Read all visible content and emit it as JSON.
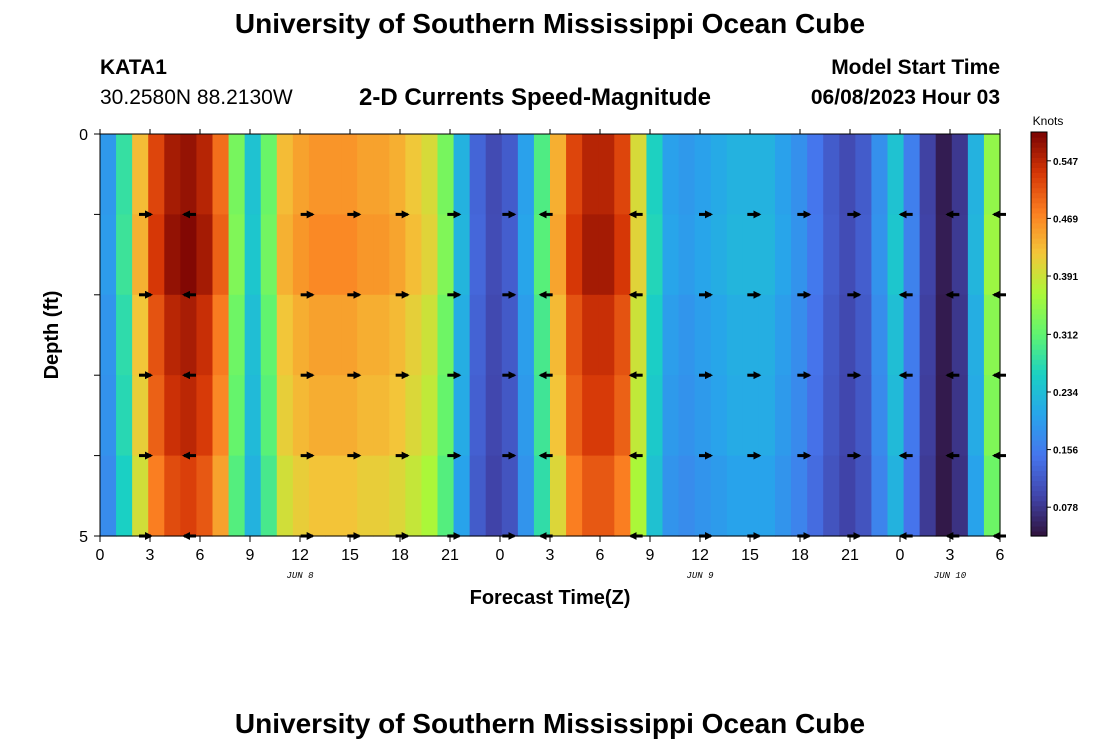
{
  "header": {
    "title": "University of Southern Mississippi Ocean Cube",
    "station_id": "KATA1",
    "coords": "30.2580N  88.2130W",
    "subtitle": "2-D Currents Speed-Magnitude",
    "model_start_label": "Model Start Time",
    "model_start_value": "06/08/2023 Hour 03"
  },
  "footer": {
    "title": "University of Southern Mississippi Ocean Cube"
  },
  "chart_data": {
    "type": "heatmap",
    "title": "2-D Currents Speed-Magnitude",
    "xlabel": "Forecast Time(Z)",
    "ylabel": "Depth (ft)",
    "xlim": [
      0,
      54
    ],
    "ylim": [
      0,
      5
    ],
    "x_ticks": [
      0,
      3,
      6,
      9,
      12,
      15,
      18,
      21,
      24,
      27,
      30,
      33,
      36,
      39,
      42,
      45,
      48,
      51,
      54
    ],
    "x_tick_labels": [
      "0",
      "3",
      "6",
      "9",
      "12",
      "15",
      "18",
      "21",
      "0",
      "3",
      "6",
      "9",
      "12",
      "15",
      "18",
      "21",
      "0",
      "3",
      "6"
    ],
    "y_ticks": [
      0,
      1,
      2,
      3,
      4,
      5
    ],
    "y_tick_labels": [
      "0",
      "",
      "",
      "",
      "",
      "5"
    ],
    "date_labels": [
      {
        "x": 12,
        "text": "JUN 8"
      },
      {
        "x": 36,
        "text": "JUN 9"
      },
      {
        "x": 51,
        "text": "JUN 10"
      }
    ],
    "colorbar": {
      "title": "Knots",
      "min": 0.039,
      "max": 0.586,
      "ticks": [
        0.078,
        0.156,
        0.234,
        0.312,
        0.391,
        0.469,
        0.547
      ],
      "tick_labels": [
        "0.078",
        "0.156",
        "0.234",
        "0.312",
        "0.391",
        "0.469",
        "0.547"
      ]
    },
    "speed_by_hour": [
      0.19,
      0.28,
      0.43,
      0.52,
      0.56,
      0.57,
      0.55,
      0.49,
      0.33,
      0.24,
      0.32,
      0.43,
      0.45,
      0.46,
      0.46,
      0.46,
      0.45,
      0.45,
      0.44,
      0.42,
      0.4,
      0.33,
      0.22,
      0.13,
      0.1,
      0.12,
      0.2,
      0.3,
      0.44,
      0.52,
      0.55,
      0.55,
      0.52,
      0.4,
      0.26,
      0.2,
      0.19,
      0.2,
      0.21,
      0.22,
      0.22,
      0.22,
      0.2,
      0.18,
      0.15,
      0.12,
      0.1,
      0.12,
      0.18,
      0.24,
      0.16,
      0.09,
      0.05,
      0.08,
      0.22,
      0.35
    ],
    "depth_factors": [
      1.0,
      1.02,
      0.98,
      0.96,
      0.92
    ],
    "arrow_depths": [
      1,
      2,
      3,
      4,
      5
    ],
    "arrows": [
      {
        "t": 2.7,
        "dir": "right"
      },
      {
        "t": 5.4,
        "dir": "left"
      },
      {
        "t": 12.4,
        "dir": "right"
      },
      {
        "t": 15.2,
        "dir": "right"
      },
      {
        "t": 18.1,
        "dir": "right"
      },
      {
        "t": 21.2,
        "dir": "right"
      },
      {
        "t": 24.5,
        "dir": "right"
      },
      {
        "t": 26.8,
        "dir": "left"
      },
      {
        "t": 32.2,
        "dir": "left"
      },
      {
        "t": 36.3,
        "dir": "right"
      },
      {
        "t": 39.2,
        "dir": "right"
      },
      {
        "t": 42.2,
        "dir": "right"
      },
      {
        "t": 45.2,
        "dir": "right"
      },
      {
        "t": 48.4,
        "dir": "left"
      },
      {
        "t": 51.2,
        "dir": "left"
      },
      {
        "t": 54.0,
        "dir": "left"
      }
    ]
  }
}
